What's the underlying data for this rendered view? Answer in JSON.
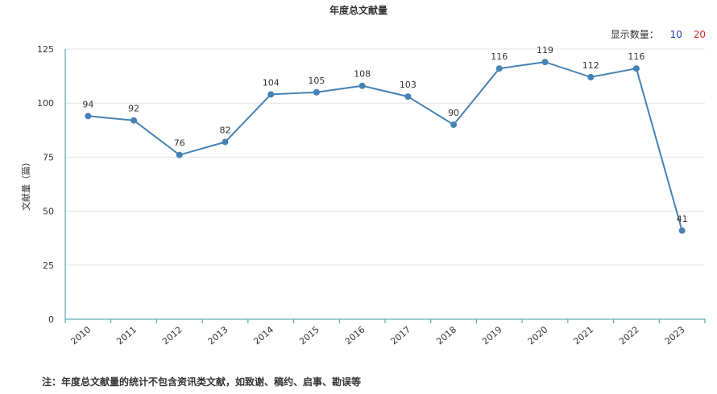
{
  "page": {
    "title": "年度总文献量",
    "display_count_label": "显示数量：",
    "display_options": [
      "10",
      "20"
    ],
    "footnote": "注：年度总文献量的统计不包含资讯类文献，如致谢、稿约、启事、勘误等"
  },
  "colors": {
    "line": "#4682b4",
    "grid": "#e0e0e0",
    "axis": "#3a9a9a",
    "text": "#333333"
  },
  "chart_data": {
    "type": "line",
    "title": "年度总文献量",
    "xlabel": "",
    "ylabel": "文献量（篇）",
    "categories": [
      "2010",
      "2011",
      "2012",
      "2013",
      "2014",
      "2015",
      "2016",
      "2017",
      "2018",
      "2019",
      "2020",
      "2021",
      "2022",
      "2023"
    ],
    "series": [
      {
        "values": [
          94,
          92,
          76,
          82,
          104,
          105,
          108,
          103,
          90,
          116,
          119,
          112,
          116,
          41
        ]
      }
    ],
    "ylim": [
      0,
      125
    ],
    "yticks": [
      0,
      25,
      50,
      75,
      100,
      125
    ],
    "grid": true,
    "legend": "none",
    "data_labels": true
  }
}
